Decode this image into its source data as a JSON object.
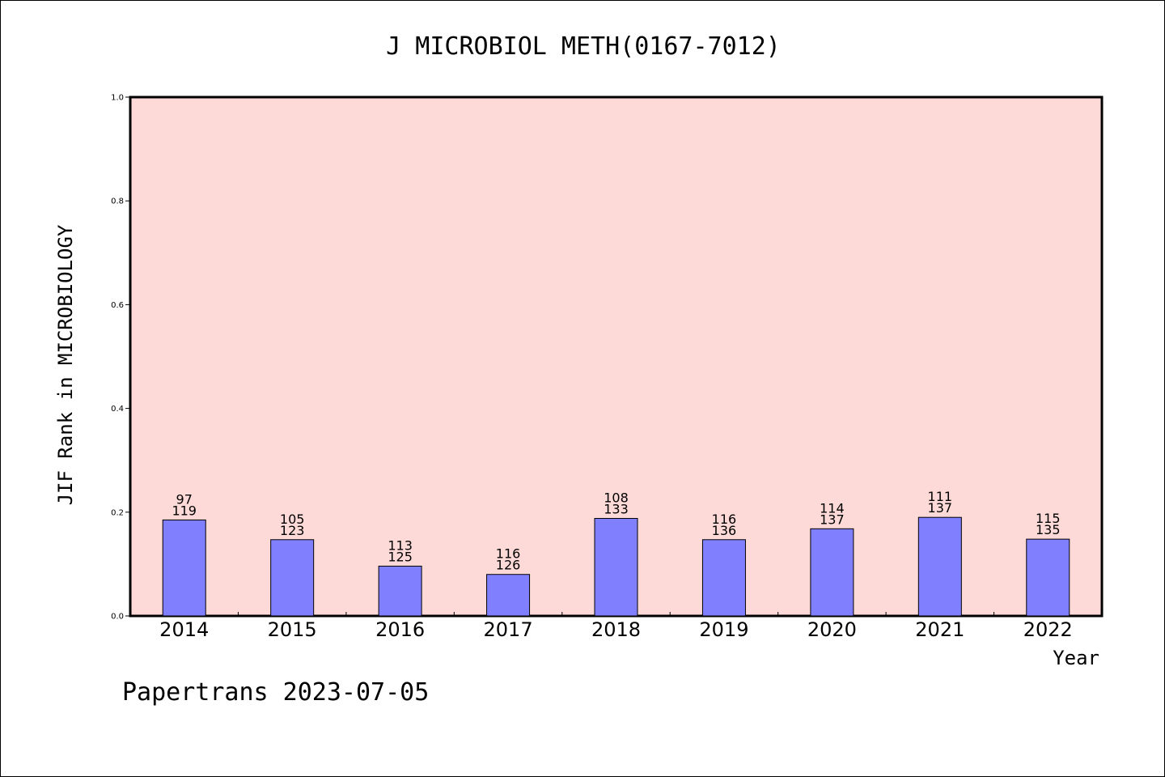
{
  "chart_data": {
    "type": "bar",
    "title": "J MICROBIOL METH(0167-7012)",
    "xlabel": "Year",
    "ylabel": "JIF Rank in MICROBIOLOGY",
    "ylim": [
      0,
      1.0
    ],
    "yticks": [
      "0.0",
      "0.2",
      "0.4",
      "0.6",
      "0.8",
      "1.0"
    ],
    "grid": false,
    "categories": [
      "2014",
      "2015",
      "2016",
      "2017",
      "2018",
      "2019",
      "2020",
      "2021",
      "2022"
    ],
    "values": [
      0.185,
      0.147,
      0.096,
      0.08,
      0.188,
      0.147,
      0.168,
      0.19,
      0.148
    ],
    "rank": [
      97,
      105,
      113,
      116,
      108,
      116,
      114,
      111,
      115
    ],
    "total": [
      119,
      123,
      125,
      126,
      133,
      136,
      137,
      137,
      135
    ]
  },
  "footer": "Papertrans 2023-07-05",
  "colors": {
    "plot_bg": "#fddad7",
    "bar_fill": "#8080ff",
    "bar_stroke": "#000000",
    "axis": "#000000"
  }
}
